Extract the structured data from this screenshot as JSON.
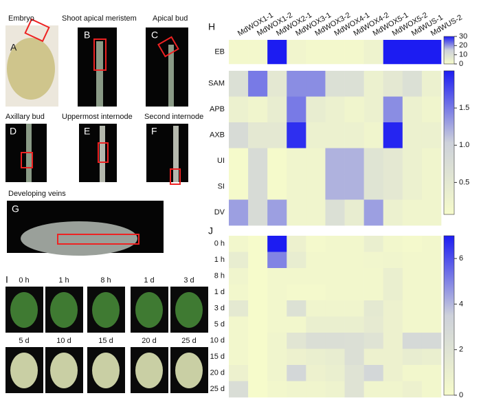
{
  "panels": [
    {
      "letter": "A",
      "title": "Embryo"
    },
    {
      "letter": "B",
      "title": "Shoot apical meristem"
    },
    {
      "letter": "C",
      "title": "Apical bud"
    },
    {
      "letter": "D",
      "title": "Axillary bud"
    },
    {
      "letter": "E",
      "title": "Uppermost internode"
    },
    {
      "letter": "F",
      "title": "Second internode"
    },
    {
      "letter": "G",
      "title": "Developing veins"
    }
  ],
  "leaf_panel": {
    "letter": "I",
    "times": [
      "0 h",
      "1 h",
      "8 h",
      "1 d",
      "3 d",
      "5 d",
      "10 d",
      "15 d",
      "20 d",
      "25 d"
    ]
  },
  "chart_data": [
    {
      "type": "heatmap",
      "panel_label": "H",
      "colormap": [
        "#f6fbcb",
        "#cdd1da",
        "#1c1cf2"
      ],
      "categories": [
        "MdWOX1-1",
        "MdWOX1-2",
        "MdWOX2-1",
        "MdWOX3-1",
        "MdWOX3-2",
        "MdWOX4-1",
        "MdWOX4-2",
        "MdWOX5-1",
        "MdWOX5-2",
        "MdWUS-1",
        "MdWUS-2"
      ],
      "rows": [
        "EB"
      ],
      "values": [
        [
          1,
          1,
          30,
          2,
          1,
          1,
          1,
          3,
          30,
          30,
          30
        ]
      ],
      "ylim": [
        0,
        30
      ],
      "yticks": [
        0,
        10,
        20,
        30
      ]
    },
    {
      "type": "heatmap",
      "colormap": [
        "#f6fbcb",
        "#cdd1da",
        "#1c1cf2"
      ],
      "rows": [
        "SAM",
        "APB",
        "AXB",
        "UI",
        "SI",
        "DV"
      ],
      "values": [
        [
          0.7,
          1.5,
          0.5,
          1.4,
          1.4,
          0.7,
          0.7,
          0.3,
          0.5,
          0.7,
          0.3
        ],
        [
          0.3,
          0.2,
          0.4,
          1.5,
          0.4,
          0.3,
          0.2,
          0.3,
          1.4,
          0.3,
          0.2
        ],
        [
          0.8,
          0.5,
          0.5,
          1.9,
          0.3,
          0.3,
          0.3,
          0.2,
          1.95,
          0.3,
          0.3
        ],
        [
          0.1,
          0.8,
          0.1,
          0.2,
          0.2,
          1.2,
          1.2,
          0.6,
          0.5,
          0.3,
          0.2
        ],
        [
          0.1,
          0.8,
          0.1,
          0.2,
          0.2,
          1.2,
          1.2,
          0.6,
          0.5,
          0.3,
          0.2
        ],
        [
          1.3,
          0.8,
          1.3,
          0.2,
          0.2,
          0.7,
          0.4,
          1.3,
          0.3,
          0.2,
          0.2
        ]
      ],
      "ylim": [
        0.07,
        2.0
      ],
      "yticks": [
        {
          "value": 0.5,
          "label": "0.5"
        },
        {
          "value": 1.0,
          "label": "1.0"
        },
        {
          "value": 1.5,
          "label": "1.5"
        }
      ]
    },
    {
      "type": "heatmap",
      "panel_label": "J",
      "colormap": [
        "#f6fbcb",
        "#cdd1da",
        "#1c1cf2"
      ],
      "rows": [
        "0 h",
        "1 h",
        "8 h",
        "1 d",
        "3 d",
        "5 d",
        "10 d",
        "15 d",
        "20 d",
        "25 d"
      ],
      "values": [
        [
          0.3,
          0,
          7,
          0.8,
          0.2,
          0.3,
          0.3,
          1.0,
          0.3,
          0.2,
          0.3
        ],
        [
          1.2,
          0,
          5,
          1.2,
          0.3,
          0.3,
          0.3,
          0.4,
          0.5,
          0.3,
          0.3
        ],
        [
          0.5,
          0,
          0.3,
          0.3,
          0.3,
          0.3,
          0.3,
          0.3,
          1.0,
          0.3,
          0.3
        ],
        [
          0.3,
          0,
          0.3,
          0.2,
          0.2,
          0.3,
          0.3,
          0.3,
          1.0,
          0.3,
          0.3
        ],
        [
          1.5,
          0,
          0.3,
          2.2,
          0.5,
          0.5,
          0.5,
          1.5,
          0.8,
          0.3,
          0.3
        ],
        [
          0.3,
          0,
          0.3,
          0.3,
          1.0,
          1.0,
          1.0,
          1.4,
          0.8,
          0.3,
          0.3
        ],
        [
          0.3,
          0,
          0.5,
          1.8,
          2.4,
          2.4,
          2.3,
          2.0,
          0.8,
          2.8,
          2.8
        ],
        [
          0.3,
          0,
          0.5,
          0.8,
          1.0,
          1.2,
          2.3,
          0.8,
          0.8,
          1.2,
          1.0
        ],
        [
          0.8,
          0,
          0.5,
          3.0,
          0.8,
          1.0,
          2.0,
          3.0,
          0.8,
          0.3,
          0.3
        ],
        [
          2.5,
          0,
          0.3,
          0.5,
          0.5,
          0.7,
          2.0,
          0.5,
          0.5,
          0.8,
          0.3
        ]
      ],
      "ylim": [
        0,
        7
      ],
      "yticks": [
        0,
        2,
        4,
        6
      ]
    }
  ]
}
